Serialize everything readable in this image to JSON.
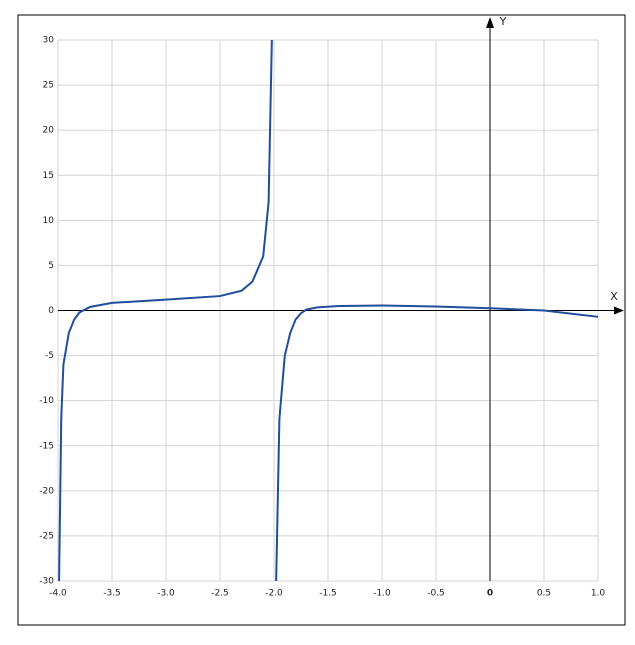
{
  "chart_data": {
    "type": "line",
    "x_label": "X",
    "y_label": "Y",
    "x": [
      -3.99,
      -3.97,
      -3.95,
      -3.9,
      -3.85,
      -3.8,
      -3.7,
      -3.5,
      -3.0,
      -2.5,
      -2.3,
      -2.2,
      -2.1,
      -2.05,
      -2.02,
      null,
      -1.98,
      -1.95,
      -1.9,
      -1.85,
      -1.8,
      -1.75,
      -1.7,
      -1.6,
      -1.4,
      -1.0,
      -0.5,
      0,
      0.5,
      1.0
    ],
    "series": [
      {
        "color": "#1f4e9c",
        "values": [
          -30,
          -12,
          -6,
          -2.5,
          -1,
          -0.2,
          0.4,
          0.85,
          1.2,
          1.6,
          2.2,
          3.2,
          6,
          12,
          30,
          null,
          -30,
          -12,
          -5,
          -2.5,
          -1,
          -0.3,
          0.1,
          0.35,
          0.5,
          0.55,
          0.45,
          0.25,
          0,
          -0.7
        ]
      }
    ],
    "xlim": [
      -4,
      1
    ],
    "ylim": [
      -30,
      30
    ],
    "xticks": [
      {
        "value": -4,
        "label": "-4.0"
      },
      -3.5,
      {
        "value": -3,
        "label": "-3.0"
      },
      -2.5,
      {
        "value": -2,
        "label": "-2.0"
      },
      -1.5,
      {
        "value": -1,
        "label": "-1.0"
      },
      -0.5,
      0,
      0.5,
      {
        "value": 1,
        "label": "1.0"
      }
    ],
    "yticks": [
      30,
      25,
      20,
      15,
      10,
      5,
      0,
      -5,
      -10,
      -15,
      -20,
      -25,
      -30
    ],
    "grid": true
  }
}
